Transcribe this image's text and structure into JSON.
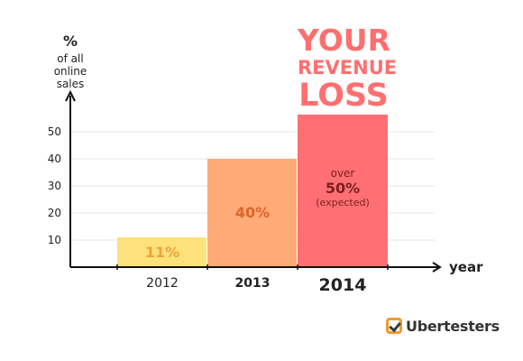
{
  "chart_data": {
    "type": "bar",
    "categories": [
      "2012",
      "2013",
      "2014"
    ],
    "values": [
      11,
      40,
      50
    ],
    "value_labels": [
      "11%",
      "40%",
      ""
    ],
    "bar_colors": [
      "#fde17a",
      "#ffaa77",
      "#ff6f73"
    ],
    "value_label_colors": [
      "#f0a23a",
      "#e0622c",
      "#7a1f1f"
    ],
    "ylabel_main": "%",
    "ylabel_sub": [
      "of all",
      "online",
      "sales"
    ],
    "xlabel": "year",
    "yticks": [
      10,
      20,
      30,
      40,
      50
    ],
    "ylim": [
      0,
      60
    ],
    "grid": true,
    "headline": [
      "YOUR",
      "REVENUE",
      "LOSS"
    ],
    "headline_color": "#ff6f6f",
    "bar_2014_note": [
      "over",
      "50%",
      "(expected)"
    ]
  },
  "brand": {
    "name": "Ubertesters",
    "accent": "#f29a2e"
  }
}
